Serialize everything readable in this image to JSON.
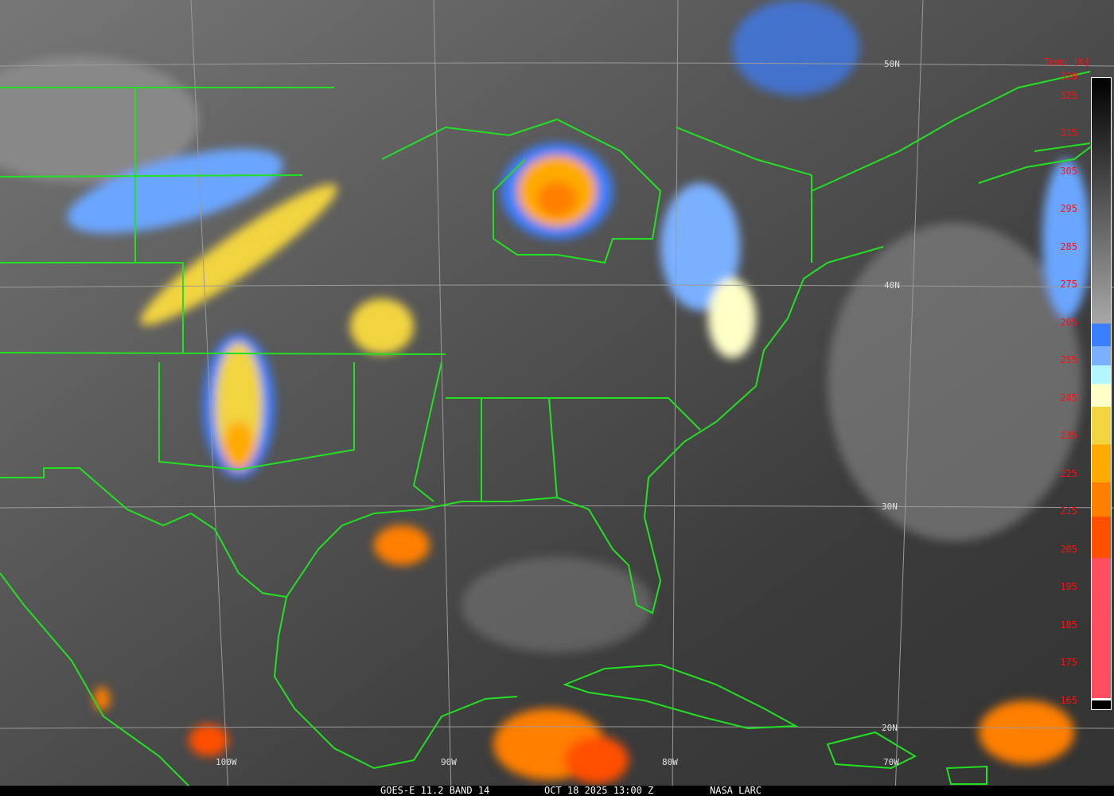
{
  "caption": {
    "satellite": "GOES-E 11.2 BAND 14",
    "datetime": "OCT 18 2025 13:00 Z",
    "credit": "NASA LARC"
  },
  "grid": {
    "latitudes": [
      "50N",
      "40N",
      "30N",
      "20N"
    ],
    "longitudes": [
      "100W",
      "90W",
      "80W",
      "70W"
    ]
  },
  "colorbar": {
    "title": "Temp [K]",
    "ticks": [
      "330",
      "325",
      "315",
      "305",
      "295",
      "285",
      "275",
      "265",
      "255",
      "245",
      "235",
      "225",
      "215",
      "205",
      "195",
      "185",
      "175",
      "165"
    ],
    "bands": [
      {
        "from": 265,
        "to": 259,
        "color": "#3a7fff"
      },
      {
        "from": 259,
        "to": 254,
        "color": "#7ab0ff"
      },
      {
        "from": 254,
        "to": 249,
        "color": "#b4f6ff"
      },
      {
        "from": 249,
        "to": 243,
        "color": "#ffffc8"
      },
      {
        "from": 243,
        "to": 233,
        "color": "#f2d440"
      },
      {
        "from": 233,
        "to": 223,
        "color": "#ffaa00"
      },
      {
        "from": 223,
        "to": 214,
        "color": "#ff7f00"
      },
      {
        "from": 214,
        "to": 203,
        "color": "#ff5000"
      },
      {
        "from": 203,
        "to": 166,
        "color": "#ff4d60"
      }
    ]
  },
  "colors": {
    "boundaries": "#22e022",
    "grid": "#9a9a9a",
    "labels": "#ff1010"
  }
}
